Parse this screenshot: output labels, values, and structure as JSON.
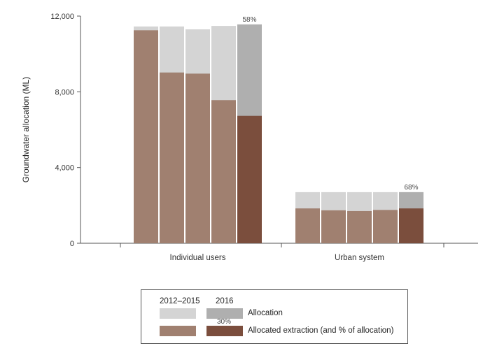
{
  "chart_data": {
    "type": "bar",
    "ylabel": "Groundwater allocation (ML)",
    "ylim": [
      0,
      12000
    ],
    "yticks": [
      0,
      4000,
      8000,
      12000
    ],
    "ytick_labels": [
      "0",
      "4,000",
      "8,000",
      "12,000"
    ],
    "groups": [
      {
        "label": "Individual users",
        "bars": [
          {
            "period": "2012–2015",
            "allocation": 11450,
            "extraction": 11250
          },
          {
            "period": "2012–2015",
            "allocation": 11450,
            "extraction": 9020
          },
          {
            "period": "2012–2015",
            "allocation": 11300,
            "extraction": 8960
          },
          {
            "period": "2012–2015",
            "allocation": 11480,
            "extraction": 7560
          },
          {
            "period": "2016",
            "allocation": 11560,
            "extraction": 6730,
            "pct_label": "58%"
          }
        ]
      },
      {
        "label": "Urban system",
        "bars": [
          {
            "period": "2012–2015",
            "allocation": 2700,
            "extraction": 1840
          },
          {
            "period": "2012–2015",
            "allocation": 2700,
            "extraction": 1740
          },
          {
            "period": "2012–2015",
            "allocation": 2700,
            "extraction": 1700
          },
          {
            "period": "2012–2015",
            "allocation": 2700,
            "extraction": 1760
          },
          {
            "period": "2016",
            "allocation": 2700,
            "extraction": 1840,
            "pct_label": "68%"
          }
        ]
      }
    ],
    "colors": {
      "allocation_2012_2015": "#d4d4d4",
      "allocation_2016": "#afafaf",
      "extraction_2012_2015": "#a08070",
      "extraction_2016": "#7b4e3d"
    },
    "legend": {
      "header_period1": "2012–2015",
      "header_period2": "2016",
      "allocation_label": "Allocation",
      "extraction_label": "Allocated extraction (and % of allocation)",
      "example_pct": "30%",
      "placement": "bottom"
    }
  }
}
